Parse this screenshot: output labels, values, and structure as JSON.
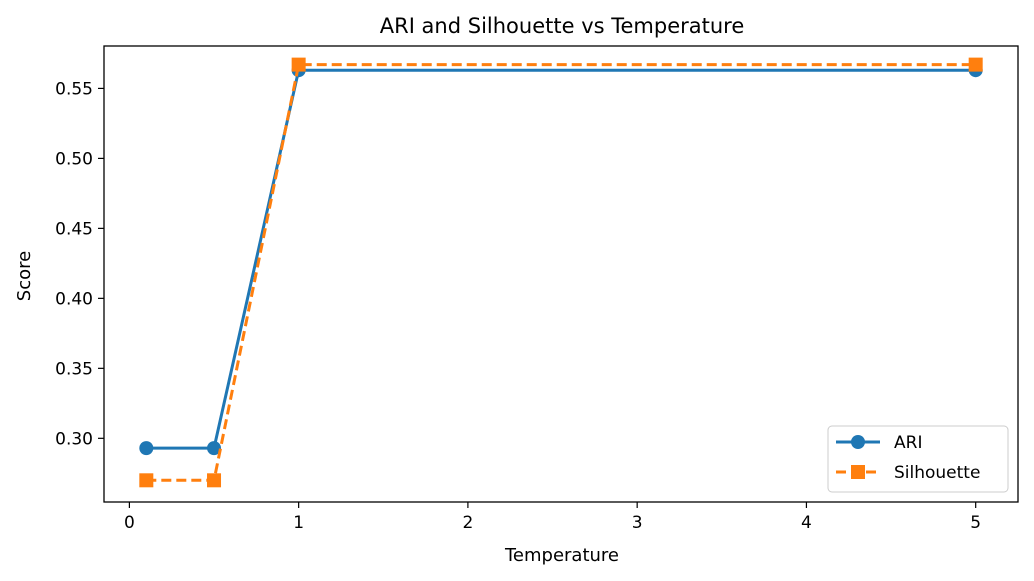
{
  "chart_data": {
    "type": "line",
    "title": "ARI and Silhouette vs Temperature",
    "xlabel": "Temperature",
    "ylabel": "Score",
    "xlim": [
      -0.15,
      5.25
    ],
    "ylim": [
      0.2545,
      0.5803
    ],
    "xticks": [
      0,
      1,
      2,
      3,
      4,
      5
    ],
    "yticks": [
      0.3,
      0.35,
      0.4,
      0.45,
      0.5,
      0.55
    ],
    "xtick_labels": [
      "0",
      "1",
      "2",
      "3",
      "4",
      "5"
    ],
    "ytick_labels": [
      "0.30",
      "0.35",
      "0.40",
      "0.45",
      "0.50",
      "0.55"
    ],
    "grid": false,
    "legend_position": "lower-right",
    "series": [
      {
        "name": "ARI",
        "x": [
          0.1,
          0.5,
          1.0,
          5.0
        ],
        "y": [
          0.293,
          0.293,
          0.563,
          0.563
        ],
        "color": "#1f77b4",
        "line_style": "solid",
        "marker": "circle"
      },
      {
        "name": "Silhouette",
        "x": [
          0.1,
          0.5,
          1.0,
          5.0
        ],
        "y": [
          0.27,
          0.27,
          0.567,
          0.567
        ],
        "color": "#ff7f0e",
        "line_style": "dashed",
        "marker": "square"
      }
    ]
  }
}
